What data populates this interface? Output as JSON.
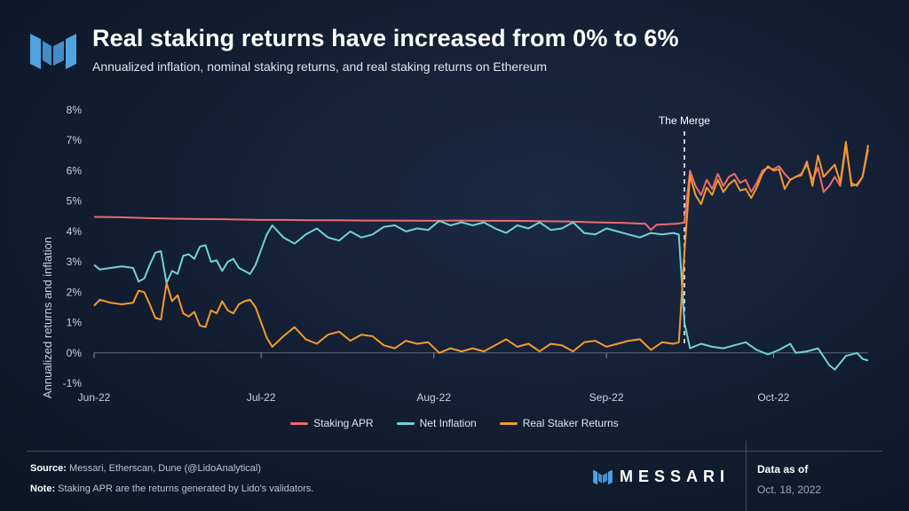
{
  "header": {
    "title": "Real staking returns have increased from 0% to 6%",
    "subtitle": "Annualized inflation, nominal staking returns, and real staking returns on Ethereum"
  },
  "footer": {
    "source_label": "Source:",
    "source_text": " Messari, Etherscan, Dune (@LidoAnalytical)",
    "note_label": "Note:",
    "note_text": " Staking APR are the returns generated by Lido's validators.",
    "brand": "MESSARI",
    "asof_label": "Data as of",
    "asof_date": "Oct. 18, 2022"
  },
  "colors": {
    "staking_apr": "#ef6a6f",
    "net_inflation": "#6fd3d6",
    "real_returns": "#f39a2b",
    "logo": "#4fa3e0"
  },
  "chart_data": {
    "type": "line",
    "ylabel": "Annualized returns and inflation",
    "ylim": [
      -1,
      8
    ],
    "yticks": [
      -1,
      0,
      1,
      2,
      3,
      4,
      5,
      6,
      7,
      8
    ],
    "ytick_labels": [
      "-1%",
      "0%",
      "1%",
      "2%",
      "3%",
      "4%",
      "5%",
      "6%",
      "7%",
      "8%"
    ],
    "xticks": [
      {
        "date": "2022-06-01",
        "label": "Jun-22"
      },
      {
        "date": "2022-07-01",
        "label": "Jul-22"
      },
      {
        "date": "2022-08-01",
        "label": "Aug-22"
      },
      {
        "date": "2022-09-01",
        "label": "Sep-22"
      },
      {
        "date": "2022-10-01",
        "label": "Oct-22"
      }
    ],
    "xlim": [
      "2022-06-01",
      "2022-10-18"
    ],
    "annotation": {
      "date": "2022-09-15",
      "label": "The Merge"
    },
    "legend_position": "bottom",
    "grid": false,
    "series": [
      {
        "name": "Staking APR",
        "values": [
          [
            "2022-06-01",
            4.48
          ],
          [
            "2022-06-05",
            4.47
          ],
          [
            "2022-06-10",
            4.44
          ],
          [
            "2022-06-15",
            4.42
          ],
          [
            "2022-06-20",
            4.41
          ],
          [
            "2022-06-25",
            4.4
          ],
          [
            "2022-07-01",
            4.38
          ],
          [
            "2022-07-05",
            4.38
          ],
          [
            "2022-07-10",
            4.37
          ],
          [
            "2022-07-15",
            4.37
          ],
          [
            "2022-07-20",
            4.36
          ],
          [
            "2022-07-25",
            4.36
          ],
          [
            "2022-08-01",
            4.35
          ],
          [
            "2022-08-05",
            4.36
          ],
          [
            "2022-08-10",
            4.35
          ],
          [
            "2022-08-15",
            4.35
          ],
          [
            "2022-08-20",
            4.34
          ],
          [
            "2022-08-25",
            4.33
          ],
          [
            "2022-08-30",
            4.3
          ],
          [
            "2022-09-04",
            4.28
          ],
          [
            "2022-09-08",
            4.25
          ],
          [
            "2022-09-09",
            4.05
          ],
          [
            "2022-09-10",
            4.22
          ],
          [
            "2022-09-14",
            4.26
          ],
          [
            "2022-09-15",
            4.3
          ],
          [
            "2022-09-16",
            6.0
          ],
          [
            "2022-09-17",
            5.5
          ],
          [
            "2022-09-18",
            5.2
          ],
          [
            "2022-09-19",
            5.7
          ],
          [
            "2022-09-20",
            5.4
          ],
          [
            "2022-09-21",
            5.9
          ],
          [
            "2022-09-22",
            5.5
          ],
          [
            "2022-09-23",
            5.8
          ],
          [
            "2022-09-24",
            5.9
          ],
          [
            "2022-09-25",
            5.6
          ],
          [
            "2022-09-26",
            5.7
          ],
          [
            "2022-09-27",
            5.3
          ],
          [
            "2022-09-28",
            5.6
          ],
          [
            "2022-09-29",
            6.0
          ],
          [
            "2022-09-30",
            6.1
          ],
          [
            "2022-10-01",
            6.05
          ],
          [
            "2022-10-02",
            6.15
          ],
          [
            "2022-10-03",
            5.9
          ],
          [
            "2022-10-04",
            5.7
          ],
          [
            "2022-10-05",
            5.8
          ],
          [
            "2022-10-06",
            5.9
          ],
          [
            "2022-10-07",
            6.2
          ],
          [
            "2022-10-08",
            5.7
          ],
          [
            "2022-10-09",
            6.1
          ],
          [
            "2022-10-10",
            5.3
          ],
          [
            "2022-10-11",
            5.5
          ],
          [
            "2022-10-12",
            5.8
          ],
          [
            "2022-10-13",
            5.5
          ],
          [
            "2022-10-14",
            6.8
          ],
          [
            "2022-10-15",
            5.6
          ],
          [
            "2022-10-16",
            5.5
          ],
          [
            "2022-10-17",
            5.8
          ],
          [
            "2022-10-18",
            6.7
          ]
        ]
      },
      {
        "name": "Net Inflation",
        "values": [
          [
            "2022-06-01",
            2.9
          ],
          [
            "2022-06-02",
            2.75
          ],
          [
            "2022-06-04",
            2.8
          ],
          [
            "2022-06-06",
            2.85
          ],
          [
            "2022-06-08",
            2.8
          ],
          [
            "2022-06-09",
            2.35
          ],
          [
            "2022-06-10",
            2.45
          ],
          [
            "2022-06-11",
            2.9
          ],
          [
            "2022-06-12",
            3.3
          ],
          [
            "2022-06-13",
            3.35
          ],
          [
            "2022-06-14",
            2.3
          ],
          [
            "2022-06-15",
            2.7
          ],
          [
            "2022-06-16",
            2.6
          ],
          [
            "2022-06-17",
            3.2
          ],
          [
            "2022-06-18",
            3.25
          ],
          [
            "2022-06-19",
            3.1
          ],
          [
            "2022-06-20",
            3.5
          ],
          [
            "2022-06-21",
            3.55
          ],
          [
            "2022-06-22",
            3.0
          ],
          [
            "2022-06-23",
            3.05
          ],
          [
            "2022-06-24",
            2.7
          ],
          [
            "2022-06-25",
            3.0
          ],
          [
            "2022-06-26",
            3.1
          ],
          [
            "2022-06-27",
            2.8
          ],
          [
            "2022-06-28",
            2.7
          ],
          [
            "2022-06-29",
            2.6
          ],
          [
            "2022-06-30",
            2.9
          ],
          [
            "2022-07-02",
            3.9
          ],
          [
            "2022-07-03",
            4.2
          ],
          [
            "2022-07-05",
            3.8
          ],
          [
            "2022-07-07",
            3.6
          ],
          [
            "2022-07-09",
            3.9
          ],
          [
            "2022-07-11",
            4.1
          ],
          [
            "2022-07-13",
            3.8
          ],
          [
            "2022-07-15",
            3.7
          ],
          [
            "2022-07-17",
            4.0
          ],
          [
            "2022-07-19",
            3.8
          ],
          [
            "2022-07-21",
            3.9
          ],
          [
            "2022-07-23",
            4.15
          ],
          [
            "2022-07-25",
            4.2
          ],
          [
            "2022-07-27",
            4.0
          ],
          [
            "2022-07-29",
            4.1
          ],
          [
            "2022-07-31",
            4.05
          ],
          [
            "2022-08-02",
            4.35
          ],
          [
            "2022-08-04",
            4.2
          ],
          [
            "2022-08-06",
            4.3
          ],
          [
            "2022-08-08",
            4.2
          ],
          [
            "2022-08-10",
            4.3
          ],
          [
            "2022-08-12",
            4.1
          ],
          [
            "2022-08-14",
            3.95
          ],
          [
            "2022-08-16",
            4.2
          ],
          [
            "2022-08-18",
            4.1
          ],
          [
            "2022-08-20",
            4.3
          ],
          [
            "2022-08-22",
            4.05
          ],
          [
            "2022-08-24",
            4.1
          ],
          [
            "2022-08-26",
            4.3
          ],
          [
            "2022-08-28",
            3.95
          ],
          [
            "2022-08-30",
            3.9
          ],
          [
            "2022-09-01",
            4.1
          ],
          [
            "2022-09-03",
            4.0
          ],
          [
            "2022-09-05",
            3.9
          ],
          [
            "2022-09-07",
            3.8
          ],
          [
            "2022-09-09",
            3.95
          ],
          [
            "2022-09-11",
            3.9
          ],
          [
            "2022-09-13",
            3.95
          ],
          [
            "2022-09-14",
            3.9
          ],
          [
            "2022-09-15",
            1.0
          ],
          [
            "2022-09-16",
            0.15
          ],
          [
            "2022-09-18",
            0.3
          ],
          [
            "2022-09-20",
            0.2
          ],
          [
            "2022-09-22",
            0.15
          ],
          [
            "2022-09-24",
            0.25
          ],
          [
            "2022-09-26",
            0.35
          ],
          [
            "2022-09-28",
            0.1
          ],
          [
            "2022-09-30",
            -0.05
          ],
          [
            "2022-10-02",
            0.1
          ],
          [
            "2022-10-04",
            0.3
          ],
          [
            "2022-10-05",
            0.0
          ],
          [
            "2022-10-07",
            0.05
          ],
          [
            "2022-10-09",
            0.15
          ],
          [
            "2022-10-11",
            -0.4
          ],
          [
            "2022-10-12",
            -0.55
          ],
          [
            "2022-10-14",
            -0.1
          ],
          [
            "2022-10-16",
            0.0
          ],
          [
            "2022-10-17",
            -0.2
          ],
          [
            "2022-10-18",
            -0.25
          ]
        ]
      },
      {
        "name": "Real Staker Returns",
        "values": [
          [
            "2022-06-01",
            1.55
          ],
          [
            "2022-06-02",
            1.75
          ],
          [
            "2022-06-04",
            1.65
          ],
          [
            "2022-06-06",
            1.6
          ],
          [
            "2022-06-08",
            1.65
          ],
          [
            "2022-06-09",
            2.05
          ],
          [
            "2022-06-10",
            2.0
          ],
          [
            "2022-06-11",
            1.6
          ],
          [
            "2022-06-12",
            1.15
          ],
          [
            "2022-06-13",
            1.1
          ],
          [
            "2022-06-14",
            2.3
          ],
          [
            "2022-06-15",
            1.7
          ],
          [
            "2022-06-16",
            1.9
          ],
          [
            "2022-06-17",
            1.3
          ],
          [
            "2022-06-18",
            1.2
          ],
          [
            "2022-06-19",
            1.35
          ],
          [
            "2022-06-20",
            0.9
          ],
          [
            "2022-06-21",
            0.85
          ],
          [
            "2022-06-22",
            1.4
          ],
          [
            "2022-06-23",
            1.3
          ],
          [
            "2022-06-24",
            1.7
          ],
          [
            "2022-06-25",
            1.4
          ],
          [
            "2022-06-26",
            1.3
          ],
          [
            "2022-06-27",
            1.6
          ],
          [
            "2022-06-28",
            1.7
          ],
          [
            "2022-06-29",
            1.75
          ],
          [
            "2022-06-30",
            1.5
          ],
          [
            "2022-07-02",
            0.5
          ],
          [
            "2022-07-03",
            0.2
          ],
          [
            "2022-07-05",
            0.55
          ],
          [
            "2022-07-07",
            0.85
          ],
          [
            "2022-07-09",
            0.45
          ],
          [
            "2022-07-11",
            0.3
          ],
          [
            "2022-07-13",
            0.6
          ],
          [
            "2022-07-15",
            0.7
          ],
          [
            "2022-07-17",
            0.4
          ],
          [
            "2022-07-19",
            0.6
          ],
          [
            "2022-07-21",
            0.55
          ],
          [
            "2022-07-23",
            0.25
          ],
          [
            "2022-07-25",
            0.15
          ],
          [
            "2022-07-27",
            0.4
          ],
          [
            "2022-07-29",
            0.3
          ],
          [
            "2022-07-31",
            0.35
          ],
          [
            "2022-08-02",
            0.0
          ],
          [
            "2022-08-04",
            0.15
          ],
          [
            "2022-08-06",
            0.05
          ],
          [
            "2022-08-08",
            0.15
          ],
          [
            "2022-08-10",
            0.05
          ],
          [
            "2022-08-12",
            0.25
          ],
          [
            "2022-08-14",
            0.45
          ],
          [
            "2022-08-16",
            0.2
          ],
          [
            "2022-08-18",
            0.3
          ],
          [
            "2022-08-20",
            0.05
          ],
          [
            "2022-08-22",
            0.3
          ],
          [
            "2022-08-24",
            0.25
          ],
          [
            "2022-08-26",
            0.05
          ],
          [
            "2022-08-28",
            0.35
          ],
          [
            "2022-08-30",
            0.4
          ],
          [
            "2022-09-01",
            0.2
          ],
          [
            "2022-09-03",
            0.3
          ],
          [
            "2022-09-05",
            0.4
          ],
          [
            "2022-09-07",
            0.45
          ],
          [
            "2022-09-09",
            0.1
          ],
          [
            "2022-09-11",
            0.35
          ],
          [
            "2022-09-13",
            0.3
          ],
          [
            "2022-09-14",
            0.35
          ],
          [
            "2022-09-15",
            3.3
          ],
          [
            "2022-09-16",
            5.85
          ],
          [
            "2022-09-17",
            5.2
          ],
          [
            "2022-09-18",
            4.9
          ],
          [
            "2022-09-19",
            5.45
          ],
          [
            "2022-09-20",
            5.2
          ],
          [
            "2022-09-21",
            5.7
          ],
          [
            "2022-09-22",
            5.3
          ],
          [
            "2022-09-23",
            5.55
          ],
          [
            "2022-09-24",
            5.7
          ],
          [
            "2022-09-25",
            5.35
          ],
          [
            "2022-09-26",
            5.4
          ],
          [
            "2022-09-27",
            5.1
          ],
          [
            "2022-09-28",
            5.45
          ],
          [
            "2022-09-29",
            5.9
          ],
          [
            "2022-09-30",
            6.15
          ],
          [
            "2022-10-01",
            6.0
          ],
          [
            "2022-10-02",
            6.05
          ],
          [
            "2022-10-03",
            5.4
          ],
          [
            "2022-10-04",
            5.7
          ],
          [
            "2022-10-05",
            5.8
          ],
          [
            "2022-10-06",
            5.85
          ],
          [
            "2022-10-07",
            6.3
          ],
          [
            "2022-10-08",
            5.5
          ],
          [
            "2022-10-09",
            6.5
          ],
          [
            "2022-10-10",
            5.8
          ],
          [
            "2022-10-11",
            6.0
          ],
          [
            "2022-10-12",
            6.2
          ],
          [
            "2022-10-13",
            5.6
          ],
          [
            "2022-10-14",
            6.95
          ],
          [
            "2022-10-15",
            5.5
          ],
          [
            "2022-10-16",
            5.55
          ],
          [
            "2022-10-17",
            5.8
          ],
          [
            "2022-10-18",
            6.85
          ]
        ]
      }
    ]
  }
}
